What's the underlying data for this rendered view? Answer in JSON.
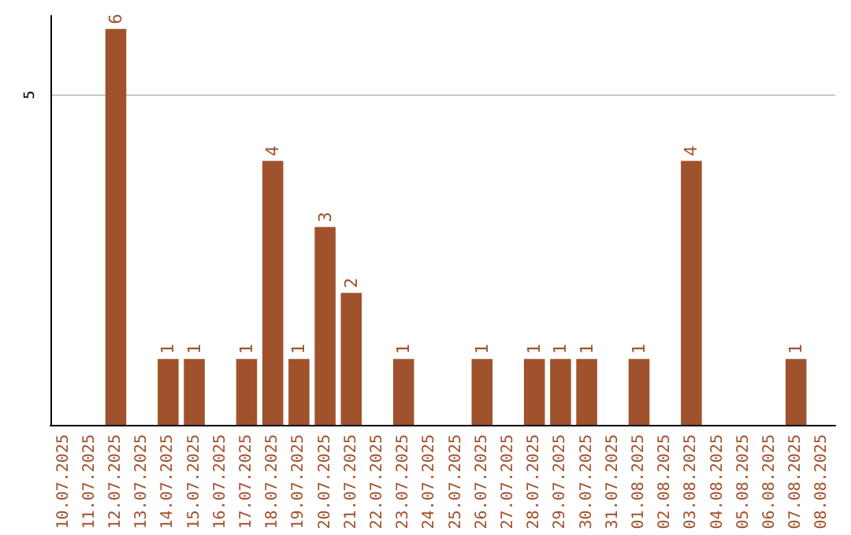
{
  "chart_data": {
    "type": "bar",
    "categories": [
      "10.07.2025",
      "11.07.2025",
      "12.07.2025",
      "13.07.2025",
      "14.07.2025",
      "15.07.2025",
      "16.07.2025",
      "17.07.2025",
      "18.07.2025",
      "19.07.2025",
      "20.07.2025",
      "21.07.2025",
      "22.07.2025",
      "23.07.2025",
      "24.07.2025",
      "25.07.2025",
      "26.07.2025",
      "27.07.2025",
      "28.07.2025",
      "29.07.2025",
      "30.07.2025",
      "31.07.2025",
      "01.08.2025",
      "02.08.2025",
      "03.08.2025",
      "04.08.2025",
      "05.08.2025",
      "06.08.2025",
      "07.08.2025",
      "08.08.2025"
    ],
    "values": [
      0,
      0,
      6,
      0,
      1,
      1,
      0,
      1,
      4,
      1,
      3,
      2,
      0,
      1,
      0,
      0,
      1,
      0,
      1,
      1,
      1,
      0,
      1,
      0,
      4,
      0,
      0,
      0,
      1,
      0
    ],
    "value_labels": [
      null,
      null,
      "6",
      null,
      "1",
      "1",
      null,
      "1",
      "4",
      "1",
      "3",
      "2",
      null,
      "1",
      null,
      null,
      "1",
      null,
      "1",
      "1",
      "1",
      null,
      "1",
      null,
      "4",
      null,
      null,
      null,
      "1",
      null
    ],
    "color": "#a0522d",
    "ylim": [
      0,
      6.2
    ],
    "yticks": [
      5
    ],
    "grid": "y"
  }
}
